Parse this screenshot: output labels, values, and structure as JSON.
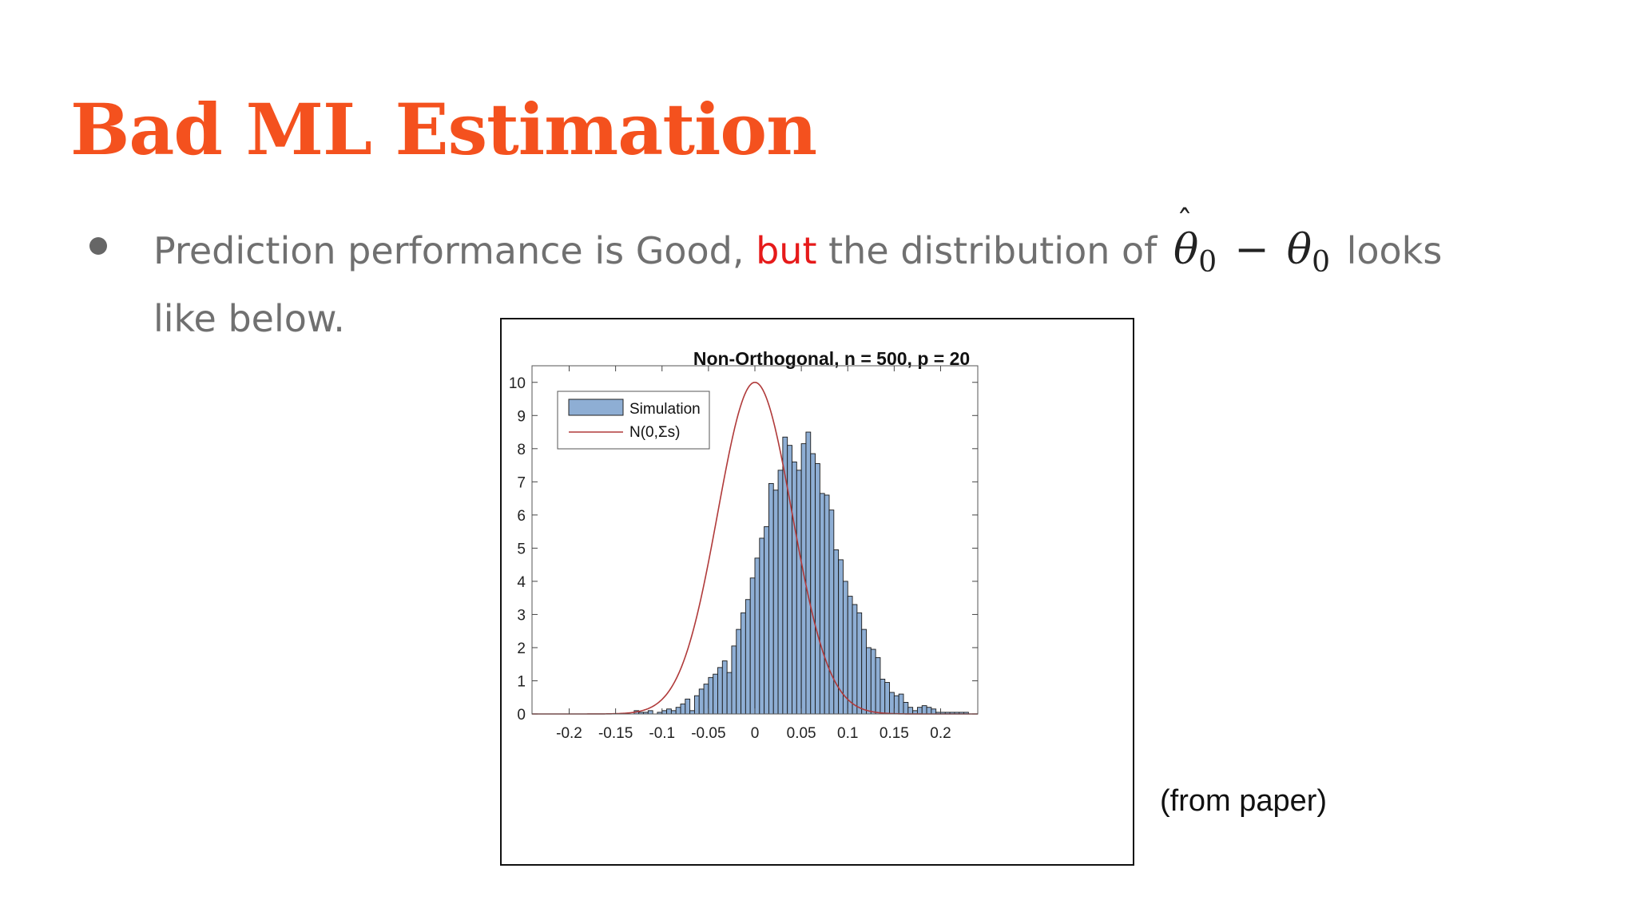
{
  "slide": {
    "title": "Bad ML Estimation",
    "bullet": {
      "part1": "Prediction performance is Good, ",
      "part2": "but",
      "part3": " the distribution of ",
      "math_theta": "θ",
      "math_sub1": "0",
      "math_minus": "−",
      "math_theta2": "θ",
      "math_sub2": "0",
      "part4": " looks like below."
    },
    "note": "(from paper)"
  },
  "chart_data": {
    "type": "bar",
    "title": "Non-Orthogonal, n = 500, p = 20",
    "xlim": [
      -0.24,
      0.24
    ],
    "ylim": [
      0,
      10.5
    ],
    "xticks": [
      "-0.2",
      "-0.15",
      "-0.1",
      "-0.05",
      "0",
      "0.05",
      "0.1",
      "0.15",
      "0.2"
    ],
    "xtick_values": [
      -0.2,
      -0.15,
      -0.1,
      -0.05,
      0,
      0.05,
      0.1,
      0.15,
      0.2
    ],
    "yticks": [
      "0",
      "1",
      "2",
      "3",
      "4",
      "5",
      "6",
      "7",
      "8",
      "9",
      "10"
    ],
    "ytick_values": [
      0,
      1,
      2,
      3,
      4,
      5,
      6,
      7,
      8,
      9,
      10
    ],
    "legend_position": "top-left",
    "bar_color": "#8eaed4",
    "line_color": "#b03a3a",
    "series": [
      {
        "name": "Simulation",
        "kind": "histogram",
        "bin_width": 0.005,
        "bin_centers": [
          -0.1275,
          -0.1225,
          -0.1175,
          -0.1125,
          -0.1075,
          -0.1025,
          -0.0975,
          -0.0925,
          -0.0875,
          -0.0825,
          -0.0775,
          -0.0725,
          -0.0675,
          -0.0625,
          -0.0575,
          -0.0525,
          -0.0475,
          -0.0425,
          -0.0375,
          -0.0325,
          -0.0275,
          -0.0225,
          -0.0175,
          -0.0125,
          -0.0075,
          -0.0025,
          0.0025,
          0.0075,
          0.0125,
          0.0175,
          0.0225,
          0.0275,
          0.0325,
          0.0375,
          0.0425,
          0.0475,
          0.0525,
          0.0575,
          0.0625,
          0.0675,
          0.0725,
          0.0775,
          0.0825,
          0.0875,
          0.0925,
          0.0975,
          0.1025,
          0.1075,
          0.1125,
          0.1175,
          0.1225,
          0.1275,
          0.1325,
          0.1375,
          0.1425,
          0.1475,
          0.1525,
          0.1575,
          0.1625,
          0.1675,
          0.1725,
          0.1775,
          0.1825,
          0.1875,
          0.1925,
          0.1975,
          0.2025,
          0.2075,
          0.2125,
          0.2175,
          0.2225,
          0.2275
        ],
        "values": [
          0.1,
          0.05,
          0.05,
          0.1,
          0.0,
          0.05,
          0.1,
          0.15,
          0.1,
          0.2,
          0.3,
          0.45,
          0.1,
          0.55,
          0.75,
          0.9,
          1.1,
          1.2,
          1.4,
          1.6,
          1.25,
          2.05,
          2.55,
          3.05,
          3.45,
          4.1,
          4.7,
          5.3,
          5.65,
          6.95,
          6.75,
          7.35,
          8.35,
          8.1,
          7.6,
          7.35,
          8.15,
          8.5,
          7.85,
          7.55,
          6.65,
          6.6,
          6.15,
          4.95,
          4.65,
          4.0,
          3.55,
          3.3,
          3.05,
          2.55,
          2.0,
          1.95,
          1.7,
          1.05,
          0.95,
          0.65,
          0.55,
          0.6,
          0.35,
          0.2,
          0.1,
          0.2,
          0.25,
          0.2,
          0.15,
          0.05,
          0.05,
          0.05,
          0.05,
          0.05,
          0.05,
          0.05
        ]
      },
      {
        "name": "N(0,Σs)",
        "kind": "line",
        "mean": 0,
        "peak": 10,
        "sigma": 0.04
      }
    ]
  }
}
